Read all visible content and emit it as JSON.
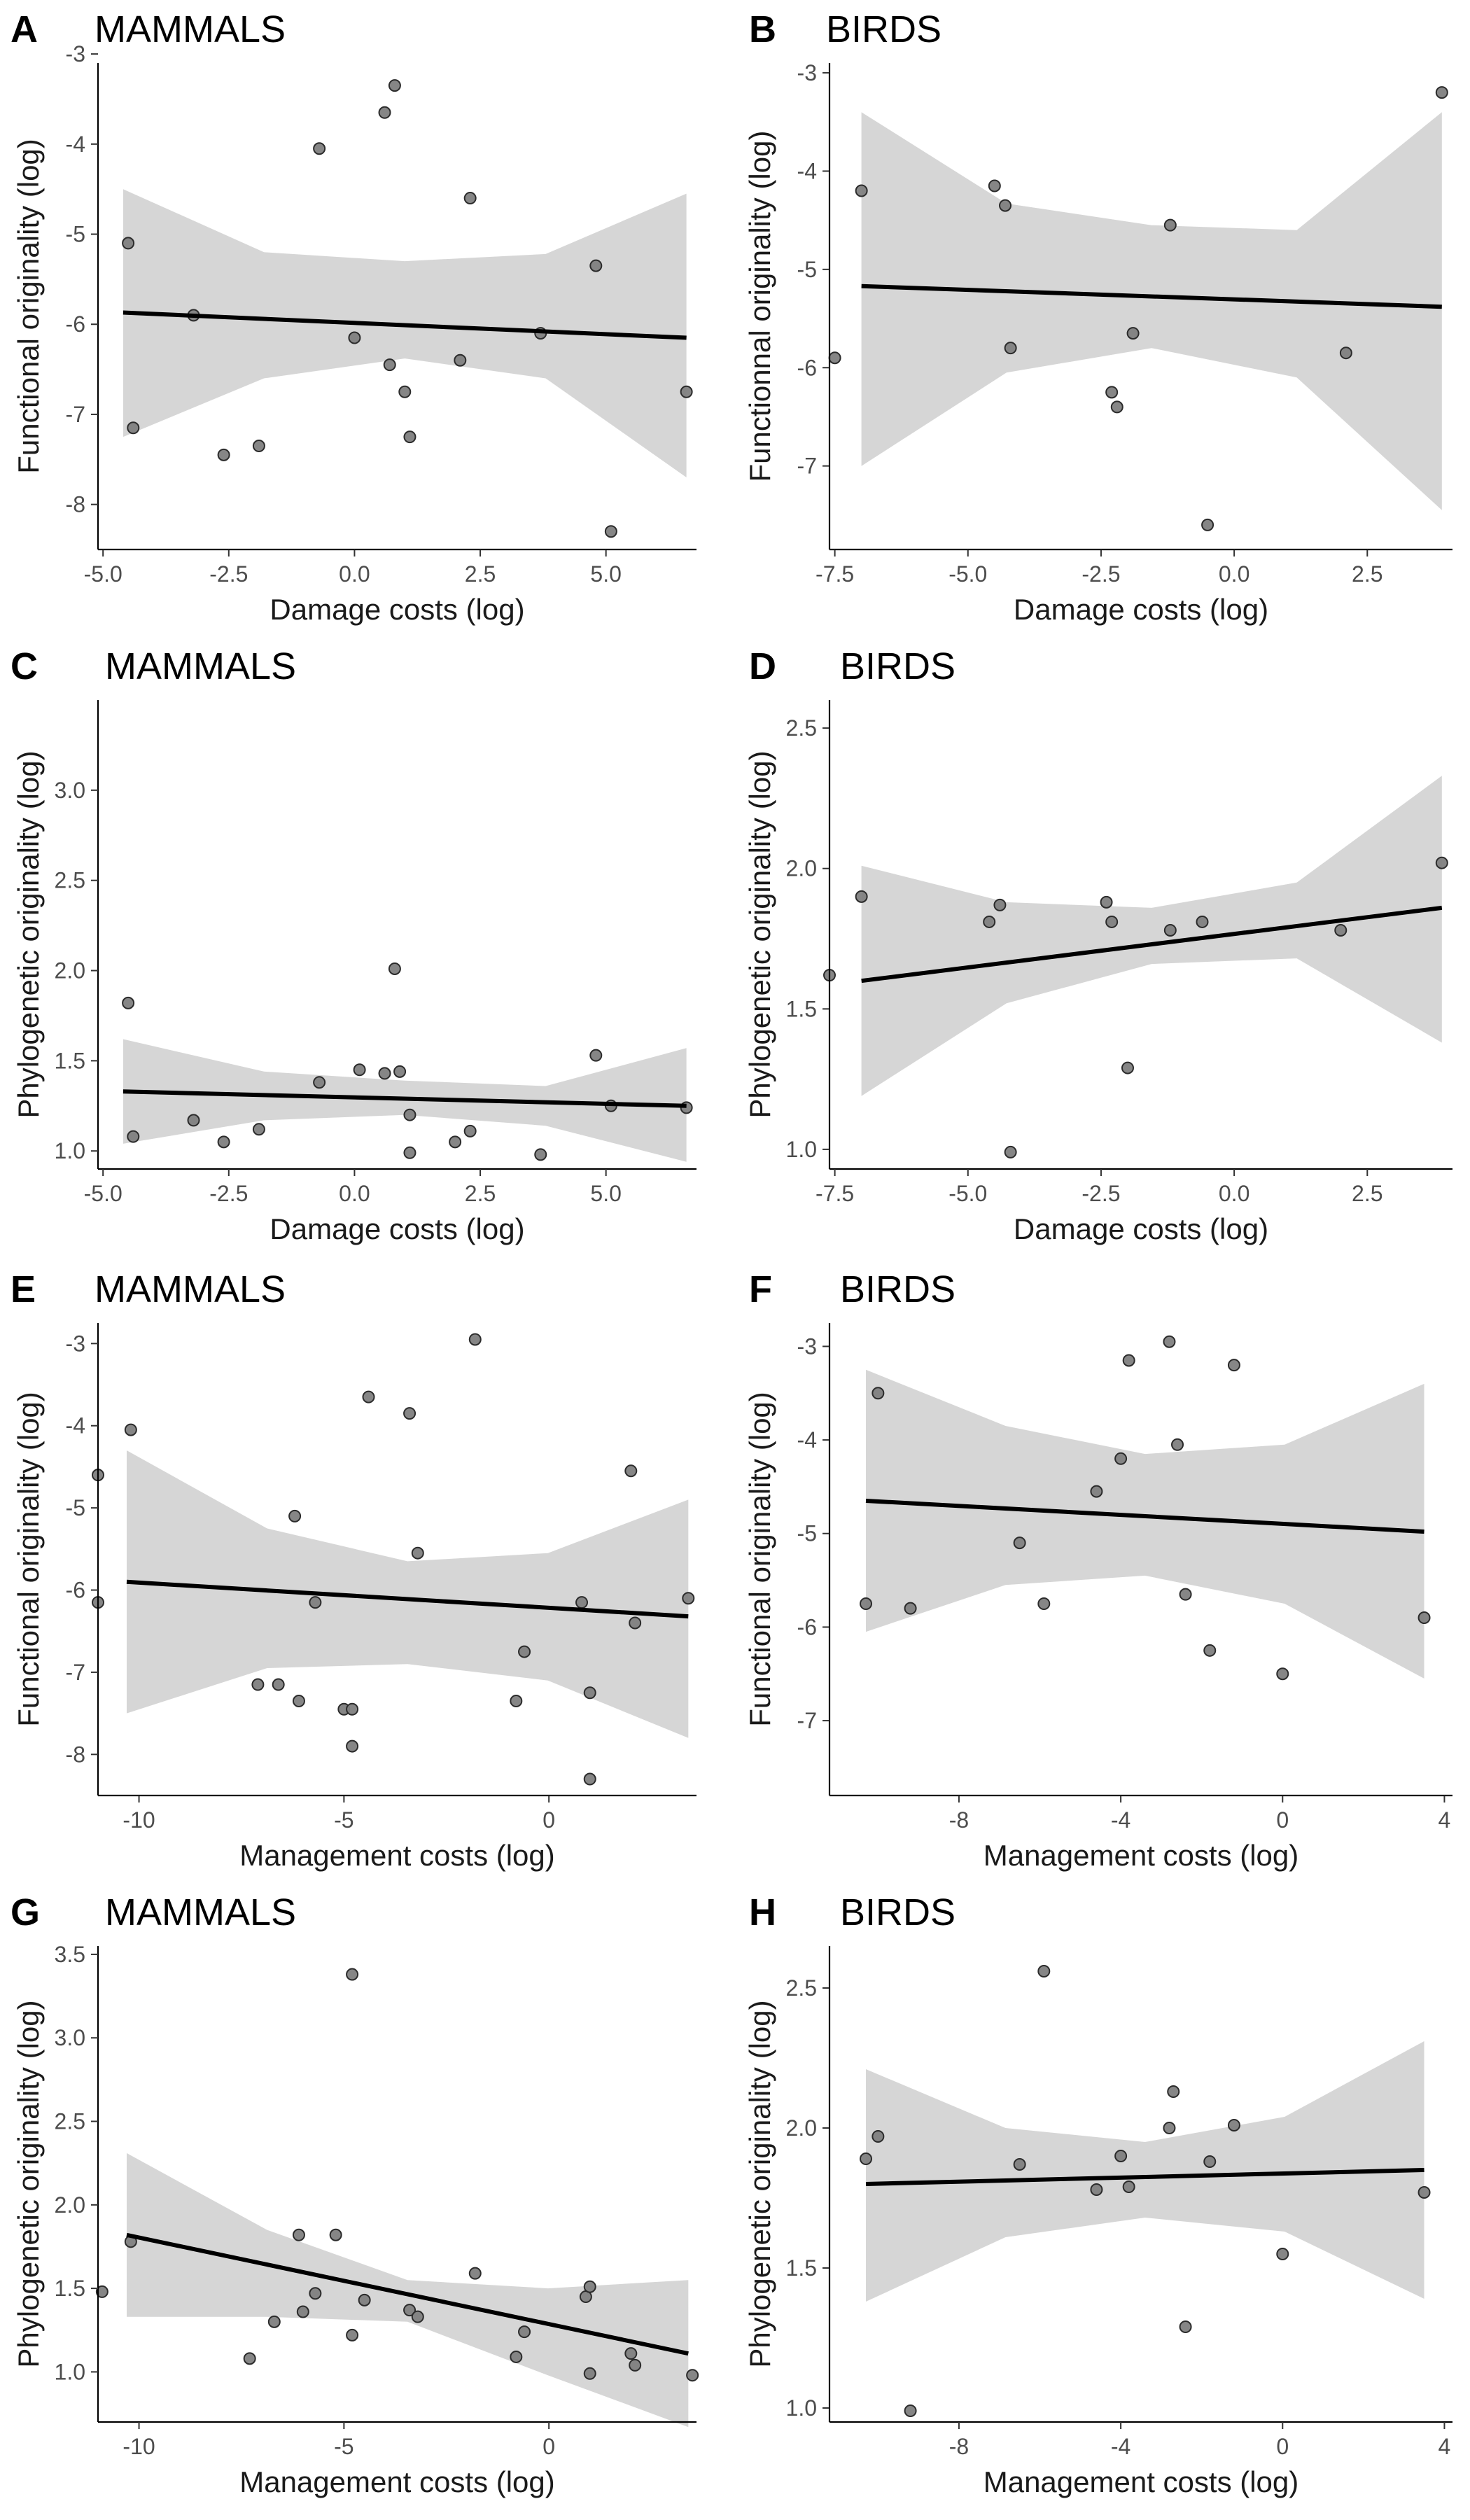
{
  "chart_data": [
    {
      "type": "scatter",
      "panel": "A",
      "title": "MAMMALS",
      "xlabel": "Damage costs (log)",
      "ylabel": "Functional originality (log)",
      "xlim": [
        -5.1,
        6.8
      ],
      "ylim": [
        -8.5,
        -3.1
      ],
      "x_ticks": [
        -5.0,
        -2.5,
        0.0,
        2.5,
        5.0
      ],
      "x_tick_labels": [
        "-5.0",
        "-2.5",
        "0.0",
        "2.5",
        "5.0"
      ],
      "y_ticks": [
        -8,
        -7,
        -6,
        -5,
        -4,
        -3
      ],
      "y_tick_labels": [
        "-8",
        "-7",
        "-6",
        "-5",
        "-4",
        "-3"
      ],
      "points": [
        [
          -4.5,
          -5.1
        ],
        [
          -4.4,
          -7.15
        ],
        [
          -3.2,
          -5.9
        ],
        [
          -2.6,
          -7.45
        ],
        [
          -1.9,
          -7.35
        ],
        [
          -0.7,
          -4.05
        ],
        [
          0.0,
          -6.15
        ],
        [
          0.6,
          -3.65
        ],
        [
          0.7,
          -6.45
        ],
        [
          0.8,
          -3.35
        ],
        [
          1.0,
          -6.75
        ],
        [
          1.1,
          -7.25
        ],
        [
          2.1,
          -6.4
        ],
        [
          2.3,
          -4.6
        ],
        [
          3.7,
          -6.1
        ],
        [
          4.8,
          -5.35
        ],
        [
          5.1,
          -8.3
        ],
        [
          6.6,
          -6.75
        ]
      ],
      "fit": {
        "x": [
          -4.6,
          6.6
        ],
        "y": [
          -5.87,
          -6.15
        ]
      },
      "ci_lower": [
        -7.25,
        -6.6,
        -6.38,
        -6.6,
        -7.7
      ],
      "ci_upper": [
        -4.5,
        -5.2,
        -5.3,
        -5.22,
        -4.55
      ],
      "grid": false
    },
    {
      "type": "scatter",
      "panel": "B",
      "title": "BIRDS",
      "xlabel": "Damage costs (log)",
      "ylabel": "Functionnal originality (log)",
      "xlim": [
        -7.6,
        4.1
      ],
      "ylim": [
        -7.85,
        -2.9
      ],
      "x_ticks": [
        -7.5,
        -5.0,
        -2.5,
        0.0,
        2.5
      ],
      "x_tick_labels": [
        "-7.5",
        "-5.0",
        "-2.5",
        "0.0",
        "2.5"
      ],
      "y_ticks": [
        -7,
        -6,
        -5,
        -4,
        -3
      ],
      "y_tick_labels": [
        "-7",
        "-6",
        "-5",
        "-4",
        "-3"
      ],
      "points": [
        [
          -7.5,
          -5.9
        ],
        [
          -7.0,
          -4.2
        ],
        [
          -4.5,
          -4.15
        ],
        [
          -4.3,
          -4.35
        ],
        [
          -4.2,
          -5.8
        ],
        [
          -2.3,
          -6.25
        ],
        [
          -2.2,
          -6.4
        ],
        [
          -1.9,
          -5.65
        ],
        [
          -1.2,
          -4.55
        ],
        [
          -0.5,
          -7.6
        ],
        [
          2.1,
          -5.85
        ],
        [
          3.9,
          -3.2
        ]
      ],
      "fit": {
        "x": [
          -7.0,
          3.9
        ],
        "y": [
          -5.17,
          -5.38
        ]
      },
      "ci_lower": [
        -7.0,
        -6.05,
        -5.8,
        -6.1,
        -7.45
      ],
      "ci_upper": [
        -3.4,
        -4.33,
        -4.55,
        -4.6,
        -3.4
      ],
      "grid": false
    },
    {
      "type": "scatter",
      "panel": "C",
      "title": "MAMMALS",
      "xlabel": "Damage costs (log)",
      "ylabel": "Phylogenetic originality (log)",
      "xlim": [
        -5.1,
        6.8
      ],
      "ylim": [
        0.9,
        3.5
      ],
      "x_ticks": [
        -5.0,
        -2.5,
        0.0,
        2.5,
        5.0
      ],
      "x_tick_labels": [
        "-5.0",
        "-2.5",
        "0.0",
        "2.5",
        "5.0"
      ],
      "y_ticks": [
        1.0,
        1.5,
        2.0,
        2.5,
        3.0
      ],
      "y_tick_labels": [
        "1.0",
        "1.5",
        "2.0",
        "2.5",
        "3.0"
      ],
      "points": [
        [
          -4.5,
          1.82
        ],
        [
          -4.4,
          1.08
        ],
        [
          -3.2,
          1.17
        ],
        [
          -2.6,
          1.05
        ],
        [
          -1.9,
          1.12
        ],
        [
          -0.7,
          1.38
        ],
        [
          0.1,
          1.45
        ],
        [
          0.6,
          1.43
        ],
        [
          0.8,
          2.01
        ],
        [
          0.9,
          1.44
        ],
        [
          1.1,
          1.2
        ],
        [
          1.1,
          0.99
        ],
        [
          2.0,
          1.05
        ],
        [
          2.3,
          1.11
        ],
        [
          3.7,
          0.98
        ],
        [
          4.8,
          1.53
        ],
        [
          5.1,
          1.25
        ],
        [
          6.6,
          1.24
        ]
      ],
      "fit": {
        "x": [
          -4.6,
          6.6
        ],
        "y": [
          1.33,
          1.25
        ]
      },
      "ci_lower": [
        1.04,
        1.17,
        1.2,
        1.14,
        0.94
      ],
      "ci_upper": [
        1.62,
        1.44,
        1.39,
        1.36,
        1.57
      ],
      "grid": false
    },
    {
      "type": "scatter",
      "panel": "D",
      "title": "BIRDS",
      "xlabel": "Damage costs (log)",
      "ylabel": "Phylogenetic originality (log)",
      "xlim": [
        -7.6,
        4.1
      ],
      "ylim": [
        0.93,
        2.6
      ],
      "x_ticks": [
        -7.5,
        -5.0,
        -2.5,
        0.0,
        2.5
      ],
      "x_tick_labels": [
        "-7.5",
        "-5.0",
        "-2.5",
        "0.0",
        "2.5"
      ],
      "y_ticks": [
        1.0,
        1.5,
        2.0,
        2.5
      ],
      "y_tick_labels": [
        "1.0",
        "1.5",
        "2.0",
        "2.5"
      ],
      "points": [
        [
          -7.6,
          1.62
        ],
        [
          -7.0,
          1.9
        ],
        [
          -4.6,
          1.81
        ],
        [
          -4.4,
          1.87
        ],
        [
          -4.2,
          0.99
        ],
        [
          -2.4,
          1.88
        ],
        [
          -2.3,
          1.81
        ],
        [
          -2.0,
          1.29
        ],
        [
          -1.2,
          1.78
        ],
        [
          -0.6,
          1.81
        ],
        [
          2.0,
          1.78
        ],
        [
          3.9,
          2.02
        ]
      ],
      "fit": {
        "x": [
          -7.0,
          3.9
        ],
        "y": [
          1.6,
          1.86
        ]
      },
      "ci_lower": [
        1.19,
        1.52,
        1.66,
        1.68,
        1.38
      ],
      "ci_upper": [
        2.01,
        1.88,
        1.86,
        1.95,
        2.33
      ],
      "grid": false
    },
    {
      "type": "scatter",
      "panel": "E",
      "title": "MAMMALS",
      "xlabel": "Management costs (log)",
      "ylabel": "Functional originality (log)",
      "xlim": [
        -11,
        3.6
      ],
      "ylim": [
        -8.5,
        -2.75
      ],
      "x_ticks": [
        -10,
        -5,
        0
      ],
      "x_tick_labels": [
        "-10",
        "-5",
        "0"
      ],
      "y_ticks": [
        -8,
        -7,
        -6,
        -5,
        -4,
        -3
      ],
      "y_tick_labels": [
        "-8",
        "-7",
        "-6",
        "-5",
        "-4",
        "-3"
      ],
      "points": [
        [
          -11.0,
          -4.6
        ],
        [
          -11.0,
          -6.15
        ],
        [
          -10.2,
          -4.05
        ],
        [
          -7.1,
          -7.15
        ],
        [
          -6.6,
          -7.15
        ],
        [
          -6.2,
          -5.1
        ],
        [
          -6.1,
          -7.35
        ],
        [
          -5.7,
          -6.15
        ],
        [
          -5.0,
          -7.45
        ],
        [
          -4.8,
          -7.45
        ],
        [
          -4.8,
          -7.9
        ],
        [
          -4.4,
          -3.65
        ],
        [
          -3.4,
          -3.85
        ],
        [
          -3.2,
          -5.55
        ],
        [
          -1.8,
          -2.95
        ],
        [
          -0.8,
          -7.35
        ],
        [
          -0.6,
          -6.75
        ],
        [
          0.8,
          -6.15
        ],
        [
          1.0,
          -7.25
        ],
        [
          1.0,
          -8.3
        ],
        [
          2.0,
          -4.55
        ],
        [
          2.1,
          -6.4
        ],
        [
          3.4,
          -6.1
        ]
      ],
      "fit": {
        "x": [
          -10.3,
          3.4
        ],
        "y": [
          -5.9,
          -6.32
        ]
      },
      "ci_lower": [
        -7.5,
        -6.95,
        -6.9,
        -7.1,
        -7.8
      ],
      "ci_upper": [
        -4.3,
        -5.25,
        -5.65,
        -5.55,
        -4.9
      ],
      "grid": false
    },
    {
      "type": "scatter",
      "panel": "F",
      "title": "BIRDS",
      "xlabel": "Management costs (log)",
      "ylabel": "Functional originality (log)",
      "xlim": [
        -11.2,
        4.2
      ],
      "ylim": [
        -7.8,
        -2.75
      ],
      "x_ticks": [
        -8,
        -4,
        0,
        4
      ],
      "x_tick_labels": [
        "-8",
        "-4",
        "0",
        "4"
      ],
      "y_ticks": [
        -7,
        -6,
        -5,
        -4,
        -3
      ],
      "y_tick_labels": [
        "-7",
        "-6",
        "-5",
        "-4",
        "-3"
      ],
      "points": [
        [
          -10.3,
          -5.75
        ],
        [
          -10.0,
          -3.5
        ],
        [
          -9.2,
          -5.8
        ],
        [
          -6.5,
          -5.1
        ],
        [
          -5.9,
          -5.75
        ],
        [
          -4.6,
          -4.55
        ],
        [
          -4.0,
          -4.2
        ],
        [
          -3.8,
          -3.15
        ],
        [
          -2.8,
          -2.95
        ],
        [
          -2.6,
          -4.05
        ],
        [
          -2.4,
          -5.65
        ],
        [
          -1.8,
          -6.25
        ],
        [
          -1.2,
          -3.2
        ],
        [
          0.0,
          -6.5
        ],
        [
          3.5,
          -5.9
        ]
      ],
      "fit": {
        "x": [
          -10.3,
          3.5
        ],
        "y": [
          -4.65,
          -4.98
        ]
      },
      "ci_lower": [
        -6.05,
        -5.55,
        -5.45,
        -5.75,
        -6.55
      ],
      "ci_upper": [
        -3.25,
        -3.85,
        -4.15,
        -4.05,
        -3.4
      ],
      "grid": false
    },
    {
      "type": "scatter",
      "panel": "G",
      "title": "MAMMALS",
      "xlabel": "Management costs (log)",
      "ylabel": "Phylogenetic originality (log)",
      "xlim": [
        -11,
        3.6
      ],
      "ylim": [
        0.7,
        3.55
      ],
      "x_ticks": [
        -10,
        -5,
        0
      ],
      "x_tick_labels": [
        "-10",
        "-5",
        "0"
      ],
      "y_ticks": [
        1.0,
        1.5,
        2.0,
        2.5,
        3.0,
        3.5
      ],
      "y_tick_labels": [
        "1.0",
        "1.5",
        "2.0",
        "2.5",
        "3.0",
        "3.5"
      ],
      "points": [
        [
          -10.9,
          1.48
        ],
        [
          -10.2,
          1.78
        ],
        [
          -7.3,
          1.08
        ],
        [
          -6.7,
          1.3
        ],
        [
          -6.1,
          1.82
        ],
        [
          -6.0,
          1.36
        ],
        [
          -5.7,
          1.47
        ],
        [
          -5.2,
          1.82
        ],
        [
          -4.8,
          1.22
        ],
        [
          -4.8,
          3.38
        ],
        [
          -4.5,
          1.43
        ],
        [
          -3.4,
          1.37
        ],
        [
          -3.2,
          1.33
        ],
        [
          -1.8,
          1.59
        ],
        [
          -0.8,
          1.09
        ],
        [
          -0.6,
          1.24
        ],
        [
          0.9,
          1.45
        ],
        [
          1.0,
          1.51
        ],
        [
          1.0,
          0.99
        ],
        [
          2.0,
          1.11
        ],
        [
          2.1,
          1.04
        ],
        [
          3.5,
          0.98
        ]
      ],
      "fit": {
        "x": [
          -10.3,
          3.4
        ],
        "y": [
          1.82,
          1.11
        ]
      },
      "ci_lower": [
        1.33,
        1.33,
        1.3,
        0.98,
        0.67
      ],
      "ci_upper": [
        2.31,
        1.85,
        1.55,
        1.5,
        1.55
      ],
      "grid": false
    },
    {
      "type": "scatter",
      "panel": "H",
      "title": "BIRDS",
      "xlabel": "Management costs (log)",
      "ylabel": "Phylogenetic originality (log)",
      "xlim": [
        -11.2,
        4.2
      ],
      "ylim": [
        0.95,
        2.65
      ],
      "x_ticks": [
        -8,
        -4,
        0,
        4
      ],
      "x_tick_labels": [
        "-8",
        "-4",
        "0",
        "4"
      ],
      "y_ticks": [
        1.0,
        1.5,
        2.0,
        2.5
      ],
      "y_tick_labels": [
        "1.0",
        "1.5",
        "2.0",
        "2.5"
      ],
      "points": [
        [
          -10.3,
          1.89
        ],
        [
          -10.0,
          1.97
        ],
        [
          -9.2,
          0.99
        ],
        [
          -6.5,
          1.87
        ],
        [
          -5.9,
          2.56
        ],
        [
          -4.6,
          1.78
        ],
        [
          -4.0,
          1.9
        ],
        [
          -3.8,
          1.79
        ],
        [
          -2.8,
          2.0
        ],
        [
          -2.7,
          2.13
        ],
        [
          -2.4,
          1.29
        ],
        [
          -1.8,
          1.88
        ],
        [
          -1.2,
          2.01
        ],
        [
          0.0,
          1.55
        ],
        [
          3.5,
          1.77
        ]
      ],
      "fit": {
        "x": [
          -10.3,
          3.5
        ],
        "y": [
          1.8,
          1.85
        ]
      },
      "ci_lower": [
        1.38,
        1.61,
        1.68,
        1.63,
        1.39
      ],
      "ci_upper": [
        2.21,
        2.0,
        1.95,
        2.04,
        2.31
      ],
      "grid": false
    }
  ]
}
